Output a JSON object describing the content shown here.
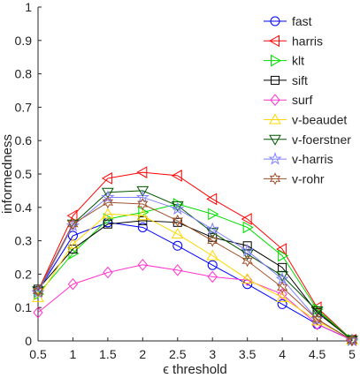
{
  "chart_data": {
    "type": "line",
    "xlabel": "ϵ threshold",
    "ylabel": "informedness",
    "xlim": [
      0.5,
      5
    ],
    "ylim": [
      0,
      1
    ],
    "x": [
      0.5,
      1,
      1.5,
      2,
      2.5,
      3,
      3.5,
      4,
      4.5,
      5
    ],
    "x_ticks": [
      "0.5",
      "1",
      "1.5",
      "2",
      "2.5",
      "3",
      "3.5",
      "4",
      "4.5",
      "5"
    ],
    "y_ticks": [
      "0",
      "0.1",
      "0.2",
      "0.3",
      "0.4",
      "0.5",
      "0.6",
      "0.7",
      "0.8",
      "0.9",
      "1"
    ],
    "grid": false,
    "legend_position": "top-right",
    "series": [
      {
        "name": "fast",
        "color": "#0000ff",
        "marker": "circle",
        "values": [
          0.15,
          0.315,
          0.355,
          0.34,
          0.285,
          0.227,
          0.17,
          0.11,
          0.05,
          0.003
        ]
      },
      {
        "name": "harris",
        "color": "#ff0000",
        "marker": "triangle-left",
        "values": [
          0.15,
          0.375,
          0.487,
          0.505,
          0.495,
          0.425,
          0.365,
          0.275,
          0.1,
          0.003
        ]
      },
      {
        "name": "klt",
        "color": "#00dd00",
        "marker": "triangle-right",
        "values": [
          0.14,
          0.262,
          0.365,
          0.385,
          0.41,
          0.38,
          0.34,
          0.255,
          0.095,
          0.003
        ]
      },
      {
        "name": "sift",
        "color": "#000000",
        "marker": "square",
        "values": [
          0.155,
          0.275,
          0.35,
          0.36,
          0.355,
          0.31,
          0.285,
          0.22,
          0.085,
          0.003
        ]
      },
      {
        "name": "surf",
        "color": "#ff33cc",
        "marker": "diamond",
        "values": [
          0.085,
          0.17,
          0.205,
          0.228,
          0.212,
          0.192,
          0.182,
          0.14,
          0.05,
          0.002
        ]
      },
      {
        "name": "v-beaudet",
        "color": "#ffd700",
        "marker": "triangle-up",
        "values": [
          0.13,
          0.29,
          0.38,
          0.375,
          0.32,
          0.255,
          0.185,
          0.13,
          0.06,
          0.003
        ]
      },
      {
        "name": "v-foerstner",
        "color": "#005500",
        "marker": "triangle-down",
        "values": [
          0.15,
          0.35,
          0.445,
          0.45,
          0.405,
          0.325,
          0.26,
          0.195,
          0.09,
          0.002
        ]
      },
      {
        "name": "v-harris",
        "color": "#8080ff",
        "marker": "pentagram",
        "values": [
          0.145,
          0.345,
          0.43,
          0.43,
          0.395,
          0.335,
          0.27,
          0.185,
          0.065,
          0.002
        ]
      },
      {
        "name": "v-rohr",
        "color": "#a0522d",
        "marker": "hexagram",
        "values": [
          0.15,
          0.35,
          0.415,
          0.41,
          0.36,
          0.3,
          0.24,
          0.16,
          0.065,
          0.002
        ]
      }
    ]
  }
}
